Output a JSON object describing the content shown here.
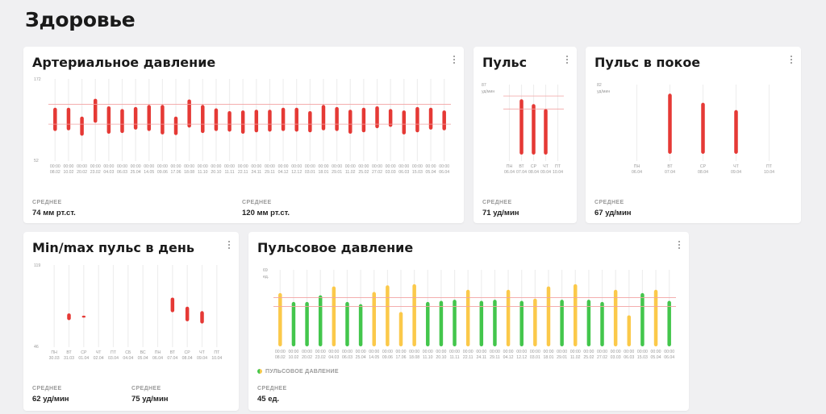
{
  "page": {
    "title": "Здоровье"
  },
  "colors": {
    "red": "#e53935",
    "yellow": "#fbc94a",
    "green": "#43c64c",
    "track": "#eeeeee",
    "refline": "#f2a3a3"
  },
  "cards": {
    "bp": {
      "title": "Артериальное давление",
      "menu_icon": "more-vertical-icon",
      "stats": [
        {
          "label": "СРЕДНЕЕ",
          "value": "74 мм рт.ст."
        },
        {
          "label": "СРЕДНЕЕ",
          "value": "120 мм рт.ст."
        }
      ],
      "chart_data": {
        "type": "bar",
        "title": "Артериальное давление",
        "ylim": [
          52,
          172
        ],
        "y_tick_labels": [
          "172",
          "52"
        ],
        "reference_lines": [
          135,
          106
        ],
        "times": [
          "00:00",
          "00:00",
          "00:00",
          "00:00",
          "00:00",
          "00:00",
          "00:00",
          "00:00",
          "00:00",
          "00:00",
          "00:00",
          "00:00",
          "00:00",
          "00:00",
          "00:00",
          "00:00",
          "00:00",
          "00:00",
          "00:00",
          "00:00",
          "00:00",
          "00:00",
          "00:00",
          "00:00",
          "00:00",
          "00:00",
          "00:00",
          "00:00",
          "00:00",
          "00:00"
        ],
        "categories": [
          "08.02",
          "10.02",
          "20.02",
          "23.02",
          "04.03",
          "06.03",
          "25.04",
          "14.05",
          "09.06",
          "17.06",
          "18.08",
          "11.10",
          "20.10",
          "11.11",
          "22.11",
          "24.11",
          "29.11",
          "04.12",
          "12.12",
          "03.01",
          "18.01",
          "29.01",
          "11.02",
          "25.02",
          "27.02",
          "03.03",
          "06.03",
          "15.03",
          "05.04",
          "06.04"
        ],
        "low": [
          96,
          97,
          89,
          108,
          92,
          93,
          98,
          96,
          91,
          90,
          101,
          93,
          96,
          95,
          92,
          94,
          95,
          96,
          95,
          94,
          97,
          96,
          92,
          94,
          100,
          102,
          91,
          94,
          98,
          97
        ],
        "high": [
          130,
          130,
          117,
          143,
          132,
          128,
          131,
          134,
          134,
          117,
          142,
          134,
          129,
          125,
          126,
          127,
          127,
          130,
          130,
          125,
          134,
          131,
          127,
          130,
          132,
          128,
          126,
          131,
          130,
          126
        ]
      }
    },
    "pulse": {
      "title": "Пульс",
      "menu_icon": "more-vertical-icon",
      "stats": [
        {
          "label": "СРЕДНЕЕ",
          "value": "71 уд/мин"
        }
      ],
      "chart_data": {
        "type": "bar",
        "title": "Пульс",
        "ylim": [
          40,
          87
        ],
        "y_tick_labels": [
          "87",
          "уд/мин"
        ],
        "reference_lines": [
          80,
          72
        ],
        "days": [
          "ПН",
          "ВТ",
          "СР",
          "ЧТ",
          "ПТ"
        ],
        "categories": [
          "06.04",
          "07.04",
          "08.04",
          "09.04",
          "10.04"
        ],
        "low": [
          null,
          44,
          44,
          44,
          null
        ],
        "high": [
          null,
          78,
          75,
          72,
          null
        ]
      }
    },
    "rest_pulse": {
      "title": "Пульс в покое",
      "menu_icon": "more-vertical-icon",
      "stats": [
        {
          "label": "СРЕДНЕЕ",
          "value": "67 уд/мин"
        }
      ],
      "chart_data": {
        "type": "bar",
        "title": "Пульс в покое",
        "ylim": [
          40,
          82
        ],
        "y_tick_labels": [
          "82",
          "уд/мин"
        ],
        "days": [
          "ПН",
          "ВТ",
          "СР",
          "ЧТ",
          "ПТ"
        ],
        "categories": [
          "06.04",
          "07.04",
          "08.04",
          "09.04",
          "10.04"
        ],
        "low": [
          null,
          44,
          44,
          44,
          null
        ],
        "high": [
          null,
          77,
          72,
          68,
          null
        ]
      }
    },
    "minmax": {
      "title": "Min/max пульс в день",
      "menu_icon": "more-vertical-icon",
      "stats": [
        {
          "label": "СРЕДНЕЕ",
          "value": "62 уд/мин"
        },
        {
          "label": "СРЕДНЕЕ",
          "value": "75 уд/мин"
        }
      ],
      "chart_data": {
        "type": "bar",
        "title": "Min/max пульс в день",
        "ylim": [
          46,
          119
        ],
        "y_tick_labels": [
          "119",
          "46"
        ],
        "days": [
          "ПН",
          "ВТ",
          "СР",
          "ЧТ",
          "ПТ",
          "СБ",
          "ВС",
          "ПН",
          "ВТ",
          "СР",
          "ЧТ",
          "ПТ"
        ],
        "categories": [
          "30.03",
          "31.03",
          "01.04",
          "02.04",
          "03.04",
          "04.04",
          "05.04",
          "06.04",
          "07.04",
          "08.04",
          "09.04",
          "10.04"
        ],
        "low": [
          null,
          70,
          73,
          null,
          null,
          null,
          null,
          null,
          77,
          69,
          67,
          null
        ],
        "high": [
          null,
          76,
          74,
          null,
          null,
          null,
          null,
          null,
          90,
          82,
          78,
          null
        ]
      }
    },
    "pulse_pressure": {
      "title": "Пульсовое давление",
      "menu_icon": "more-vertical-icon",
      "legend": "ПУЛЬСОВОЕ ДАВЛЕНИЕ",
      "stats": [
        {
          "label": "СРЕДНЕЕ",
          "value": "45 ед."
        }
      ],
      "chart_data": {
        "type": "bar",
        "title": "Пульсовое давление",
        "ylim": [
          0,
          69
        ],
        "y_tick_labels": [
          "69",
          "ед."
        ],
        "reference_lines": [
          44,
          36
        ],
        "categories": [
          "08.02",
          "10.02",
          "20.02",
          "23.02",
          "04.03",
          "06.03",
          "25.04",
          "14.05",
          "09.06",
          "17.06",
          "18.08",
          "11.10",
          "20.10",
          "11.11",
          "22.11",
          "24.11",
          "29.11",
          "04.12",
          "12.12",
          "03.01",
          "18.01",
          "29.01",
          "11.02",
          "25.02",
          "27.02",
          "03.03",
          "06.03",
          "15.03",
          "05.04",
          "06.04"
        ],
        "times": [
          "00:00",
          "00:00",
          "00:00",
          "00:00",
          "00:00",
          "00:00",
          "00:00",
          "00:00",
          "00:00",
          "00:00",
          "00:00",
          "00:00",
          "00:00",
          "00:00",
          "00:00",
          "00:00",
          "00:00",
          "00:00",
          "00:00",
          "00:00",
          "00:00",
          "00:00",
          "00:00",
          "00:00",
          "00:00",
          "00:00",
          "00:00",
          "00:00",
          "00:00",
          "00:00"
        ],
        "values": [
          48,
          40,
          40,
          46,
          54,
          40,
          38,
          49,
          55,
          31,
          56,
          40,
          41,
          42,
          51,
          41,
          42,
          51,
          41,
          43,
          54,
          42,
          56,
          42,
          40,
          51,
          28,
          48,
          51,
          41
        ],
        "colors": [
          "yellow",
          "green",
          "green",
          "green",
          "yellow",
          "green",
          "green",
          "yellow",
          "yellow",
          "yellow",
          "yellow",
          "green",
          "green",
          "green",
          "yellow",
          "green",
          "green",
          "yellow",
          "green",
          "yellow",
          "yellow",
          "green",
          "yellow",
          "green",
          "green",
          "yellow",
          "yellow",
          "green",
          "yellow",
          "green"
        ]
      }
    }
  }
}
